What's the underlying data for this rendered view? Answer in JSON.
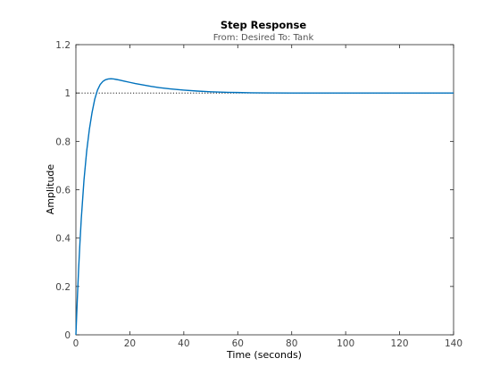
{
  "chart_data": {
    "type": "line",
    "title": "Step Response",
    "subtitle": "From: Desired  To: Tank",
    "xlabel": "Time (seconds)",
    "ylabel": "Amplitude",
    "xlim": [
      0,
      140
    ],
    "ylim": [
      0,
      1.2
    ],
    "xticks": [
      0,
      20,
      40,
      60,
      80,
      100,
      120,
      140
    ],
    "yticks": [
      0,
      0.2,
      0.4,
      0.6,
      0.8,
      1,
      1.2
    ],
    "reference_value": 1,
    "grid": false,
    "series": [
      {
        "color": "#0072bd",
        "x": [
          0,
          0.5,
          1,
          1.5,
          2,
          3,
          4,
          5,
          6,
          7,
          8,
          9,
          10,
          11,
          12,
          13,
          14,
          15,
          16,
          18,
          20,
          22,
          25,
          28,
          31,
          35,
          40,
          45,
          50,
          55,
          60,
          65,
          70,
          80,
          90,
          100,
          110,
          120,
          130,
          140
        ],
        "y": [
          0,
          0.14,
          0.27,
          0.38,
          0.48,
          0.64,
          0.76,
          0.85,
          0.92,
          0.975,
          1.012,
          1.035,
          1.048,
          1.055,
          1.058,
          1.059,
          1.058,
          1.056,
          1.054,
          1.049,
          1.044,
          1.039,
          1.033,
          1.027,
          1.022,
          1.017,
          1.012,
          1.008,
          1.005,
          1.003,
          1.002,
          1.001,
          1.0005,
          1.0,
          1.0,
          1.0,
          1.0,
          1.0,
          1.0,
          1.0
        ]
      }
    ]
  }
}
